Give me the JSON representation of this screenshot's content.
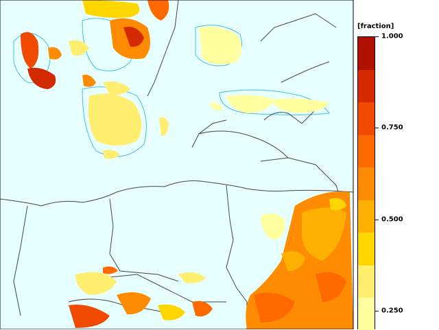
{
  "legend": {
    "unit_label": "[fraction]",
    "ticks": [
      "1.000",
      "0.750",
      "0.500",
      "0.250"
    ],
    "tick_values": [
      1.0,
      0.75,
      0.5,
      0.25
    ],
    "colors": [
      "#ffffa0",
      "#ffee70",
      "#ffd700",
      "#ffb000",
      "#ff8c00",
      "#ff6a00",
      "#f04a00",
      "#d42a00",
      "#b01000"
    ],
    "min": 0.2,
    "max": 1.0
  },
  "map": {
    "background_color": "#e8ffff",
    "land_color": "#e8ffff",
    "border_color": "#444444",
    "coast_color": "#40c0e0"
  }
}
